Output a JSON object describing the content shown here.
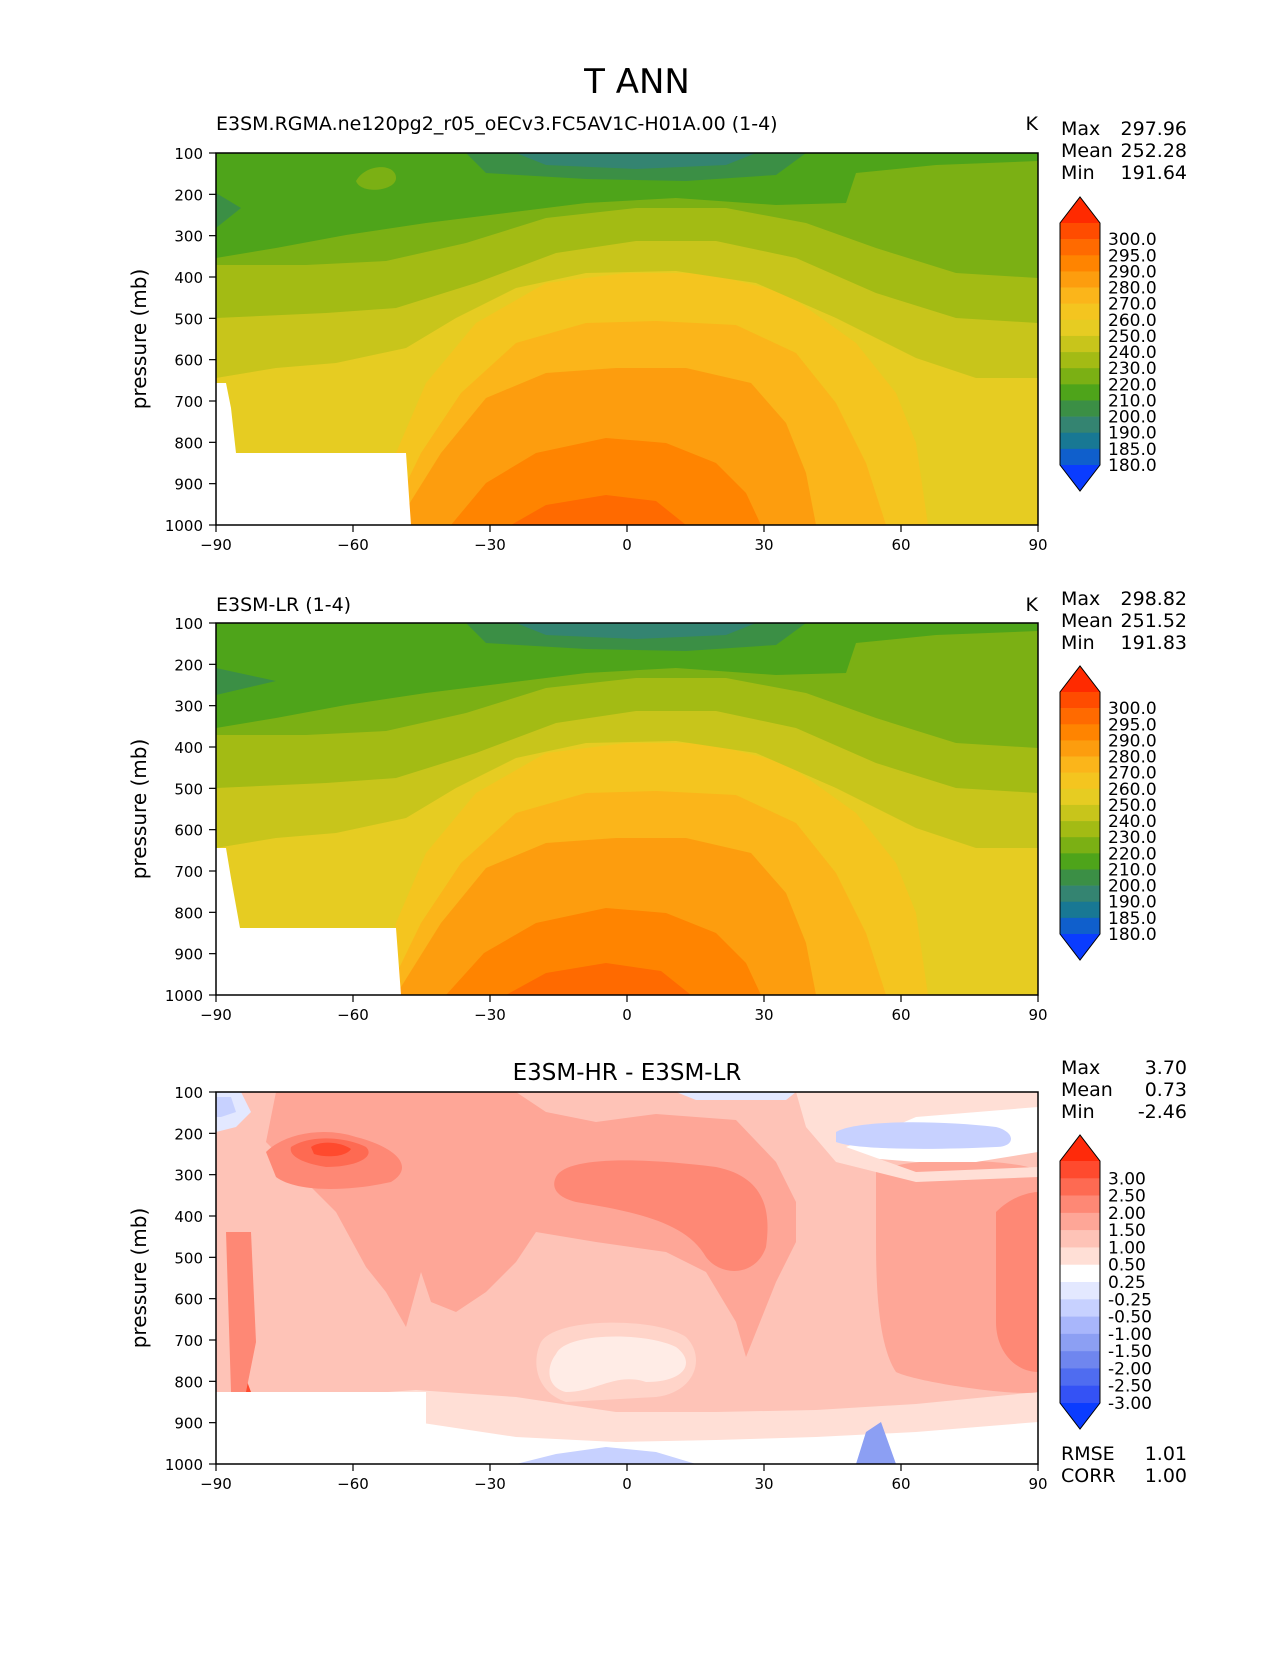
{
  "figure_title": "T ANN",
  "panels": [
    {
      "title_left": "E3SM.RGMA.ne120pg2_r05_oECv3.FC5AV1C-H01A.00 (1-4)",
      "title_center": "",
      "units": "K",
      "stats": [
        {
          "label": "Max",
          "value": "297.96"
        },
        {
          "label": "Mean",
          "value": "252.28"
        },
        {
          "label": "Min",
          "value": "191.64"
        }
      ],
      "colorbar_labels": [
        "300.0",
        "295.0",
        "290.0",
        "280.0",
        "270.0",
        "260.0",
        "250.0",
        "240.0",
        "230.0",
        "220.0",
        "210.0",
        "200.0",
        "190.0",
        "185.0",
        "180.0"
      ],
      "colors": [
        "#ff2a00",
        "#ff4c00",
        "#ff6a00",
        "#ff8400",
        "#fd9d0e",
        "#fbb51a",
        "#f4c51f",
        "#e6cc22",
        "#c8c51b",
        "#a3bb14",
        "#7bb014",
        "#4ea41a",
        "#3b8f45",
        "#348471",
        "#187894",
        "#0f5fcc",
        "#0a3cff"
      ],
      "sample_values": [
        {
          "lat": "-90",
          "lev": "1000",
          "value": "missing"
        },
        {
          "lat": "0",
          "lev": "1000",
          "value": "297"
        },
        {
          "lat": "0",
          "lev": "500",
          "value": "265"
        },
        {
          "lat": "0",
          "lev": "100",
          "value": "195"
        },
        {
          "lat": "90",
          "lev": "100",
          "value": "225"
        }
      ]
    },
    {
      "title_left": "E3SM-LR (1-4)",
      "title_center": "",
      "units": "K",
      "stats": [
        {
          "label": "Max",
          "value": "298.82"
        },
        {
          "label": "Mean",
          "value": "251.52"
        },
        {
          "label": "Min",
          "value": "191.83"
        }
      ],
      "colorbar_labels": [
        "300.0",
        "295.0",
        "290.0",
        "280.0",
        "270.0",
        "260.0",
        "250.0",
        "240.0",
        "230.0",
        "220.0",
        "210.0",
        "200.0",
        "190.0",
        "185.0",
        "180.0"
      ],
      "colors": [
        "#ff2a00",
        "#ff4c00",
        "#ff6a00",
        "#ff8400",
        "#fd9d0e",
        "#fbb51a",
        "#f4c51f",
        "#e6cc22",
        "#c8c51b",
        "#a3bb14",
        "#7bb014",
        "#4ea41a",
        "#3b8f45",
        "#348471",
        "#187894",
        "#0f5fcc",
        "#0a3cff"
      ]
    },
    {
      "title_left": "",
      "title_center": "E3SM-HR - E3SM-LR",
      "units": "",
      "stats": [
        {
          "label": "Max",
          "value": "3.70"
        },
        {
          "label": "Mean",
          "value": "0.73"
        },
        {
          "label": "Min",
          "value": "-2.46"
        }
      ],
      "colorbar_labels": [
        "3.00",
        "2.50",
        "2.00",
        "1.50",
        "1.00",
        "0.50",
        "0.25",
        "-0.25",
        "-0.50",
        "-1.00",
        "-1.50",
        "-2.00",
        "-2.50",
        "-3.00"
      ],
      "colors": [
        "#ff2a0a",
        "#ff4a2e",
        "#fe6a52",
        "#fe8875",
        "#fea697",
        "#fec3b7",
        "#ffdfd6",
        "#ffffff",
        "#e3e8ff",
        "#c7d1ff",
        "#a8b6fb",
        "#8c9ff3",
        "#6f86ef",
        "#4f6cf0",
        "#3452f5",
        "#0a3cff"
      ],
      "footer_stats": [
        {
          "label": "RMSE",
          "value": "1.01"
        },
        {
          "label": "CORR",
          "value": "1.00"
        }
      ]
    }
  ],
  "chart_data": [
    {
      "type": "heatmap",
      "title": "E3SM.RGMA.ne120pg2_r05_oECv3.FC5AV1C-H01A.00 (1-4)",
      "xlabel": "",
      "ylabel": "pressure (mb)",
      "xlim": [
        -90,
        90
      ],
      "ylim": [
        1000,
        100
      ],
      "xticks": [
        "−90",
        "−60",
        "−30",
        "0",
        "30",
        "60",
        "90"
      ],
      "yticks": [
        "100",
        "200",
        "300",
        "400",
        "500",
        "600",
        "700",
        "800",
        "900",
        "1000"
      ]
    },
    {
      "type": "heatmap",
      "title": "E3SM-LR (1-4)",
      "xlabel": "",
      "ylabel": "pressure (mb)",
      "xlim": [
        -90,
        90
      ],
      "ylim": [
        1000,
        100
      ],
      "xticks": [
        "−90",
        "−60",
        "−30",
        "0",
        "30",
        "60",
        "90"
      ],
      "yticks": [
        "100",
        "200",
        "300",
        "400",
        "500",
        "600",
        "700",
        "800",
        "900",
        "1000"
      ]
    },
    {
      "type": "heatmap",
      "title": "E3SM-HR - E3SM-LR",
      "xlabel": "",
      "ylabel": "pressure (mb)",
      "xlim": [
        -90,
        90
      ],
      "ylim": [
        1000,
        100
      ],
      "xticks": [
        "−90",
        "−60",
        "−30",
        "0",
        "30",
        "60",
        "90"
      ],
      "yticks": [
        "100",
        "200",
        "300",
        "400",
        "500",
        "600",
        "700",
        "800",
        "900",
        "1000"
      ]
    }
  ]
}
